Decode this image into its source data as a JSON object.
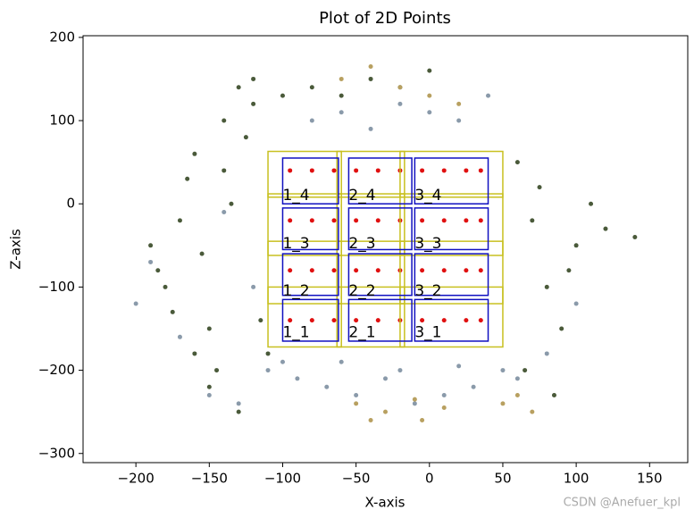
{
  "chart_data": {
    "type": "scatter",
    "title": "Plot of 2D Points",
    "xlabel": "X-axis",
    "ylabel": "Z-axis",
    "watermark": "CSDN @Anefuer_kpl",
    "xlim": [
      -236,
      176
    ],
    "ylim": [
      -311,
      202
    ],
    "xticks": [
      {
        "value": -200,
        "label": "−200"
      },
      {
        "value": -150,
        "label": "−150"
      },
      {
        "value": -100,
        "label": "−100"
      },
      {
        "value": -50,
        "label": "−50"
      },
      0,
      50,
      100,
      150
    ],
    "yticks": [
      {
        "value": -300,
        "label": "−300"
      },
      {
        "value": -200,
        "label": "−200"
      },
      {
        "value": -100,
        "label": "−100"
      },
      0,
      100,
      200
    ],
    "series": [
      {
        "color": "#4a5a3a",
        "x": [
          -190,
          -180,
          -170,
          -160,
          -150,
          -140,
          -130,
          -120,
          -110,
          -175,
          -165,
          -155,
          -145,
          -135,
          -125,
          -115,
          -185,
          -160,
          -140,
          -120,
          60,
          70,
          80,
          90,
          100,
          110,
          65,
          75,
          85,
          95,
          120,
          140,
          -150,
          -130,
          -100,
          -80,
          -60,
          -40,
          -20,
          0
        ],
        "y": [
          -50,
          -100,
          -20,
          60,
          -150,
          100,
          140,
          120,
          -180,
          -130,
          30,
          -60,
          -200,
          0,
          80,
          -140,
          -80,
          -180,
          40,
          150,
          50,
          -20,
          -100,
          -150,
          -50,
          0,
          -200,
          20,
          -230,
          -80,
          -30,
          -40,
          -220,
          -250,
          130,
          140,
          130,
          150,
          140,
          160
        ]
      },
      {
        "color": "#8a9aaa",
        "x": [
          -200,
          -170,
          -150,
          -130,
          -110,
          -90,
          -70,
          -50,
          -30,
          -10,
          10,
          30,
          50,
          -80,
          -60,
          -40,
          -20,
          0,
          20,
          40,
          60,
          -190,
          -140,
          -120,
          80,
          100,
          -100,
          -60,
          -20,
          20
        ],
        "y": [
          -120,
          -160,
          -230,
          -240,
          -200,
          -210,
          -220,
          -230,
          -210,
          -240,
          -230,
          -220,
          -200,
          100,
          110,
          90,
          120,
          110,
          100,
          130,
          -210,
          -70,
          -10,
          -100,
          -180,
          -120,
          -190,
          -190,
          -200,
          -195
        ]
      },
      {
        "color": "#b8a060",
        "x": [
          -60,
          -40,
          -20,
          0,
          20,
          -50,
          -30,
          -10,
          10,
          -5,
          50,
          60,
          70,
          -40
        ],
        "y": [
          150,
          165,
          140,
          130,
          120,
          -240,
          -250,
          -235,
          -245,
          -260,
          -240,
          -230,
          -250,
          -260
        ]
      },
      {
        "color": "#e01010",
        "x": [
          -95,
          -80,
          -65,
          -50,
          -35,
          -20,
          -5,
          10,
          25,
          35,
          -95,
          -80,
          -65,
          -50,
          -35,
          -20,
          -5,
          10,
          25,
          35,
          -95,
          -80,
          -65,
          -50,
          -35,
          -20,
          -5,
          10,
          25,
          35,
          -95,
          -80,
          -65,
          -50,
          -35,
          -20,
          -5,
          10,
          25,
          35
        ],
        "y": [
          40,
          40,
          40,
          40,
          40,
          40,
          40,
          40,
          40,
          40,
          -20,
          -20,
          -20,
          -20,
          -20,
          -20,
          -20,
          -20,
          -20,
          -20,
          -80,
          -80,
          -80,
          -80,
          -80,
          -80,
          -80,
          -80,
          -80,
          -80,
          -140,
          -140,
          -140,
          -140,
          -140,
          -140,
          -140,
          -140,
          -140,
          -140
        ]
      }
    ],
    "rect_groups": [
      {
        "color": "#c8c020",
        "rects": [
          [
            -110,
            -60,
            8,
            63
          ],
          [
            -63,
            -17,
            8,
            63
          ],
          [
            -20,
            50,
            8,
            63
          ],
          [
            -110,
            -60,
            -62,
            12
          ],
          [
            -63,
            -17,
            -62,
            12
          ],
          [
            -20,
            50,
            -62,
            12
          ],
          [
            -110,
            -60,
            -120,
            -45
          ],
          [
            -63,
            -17,
            -120,
            -45
          ],
          [
            -20,
            50,
            -120,
            -45
          ],
          [
            -110,
            -60,
            -172,
            -100
          ],
          [
            -63,
            -17,
            -172,
            -100
          ],
          [
            -20,
            50,
            -172,
            -100
          ]
        ]
      },
      {
        "color": "#1010c0",
        "rects": [
          [
            -100,
            -62,
            0,
            55
          ],
          [
            -55,
            -12,
            0,
            55
          ],
          [
            -10,
            40,
            0,
            55
          ],
          [
            -100,
            -62,
            -55,
            -5
          ],
          [
            -55,
            -12,
            -55,
            -5
          ],
          [
            -10,
            40,
            -55,
            -5
          ],
          [
            -100,
            -62,
            -110,
            -60
          ],
          [
            -55,
            -12,
            -110,
            -60
          ],
          [
            -10,
            40,
            -110,
            -60
          ],
          [
            -100,
            -62,
            -165,
            -115
          ],
          [
            -55,
            -12,
            -165,
            -115
          ],
          [
            -10,
            40,
            -165,
            -115
          ]
        ]
      }
    ],
    "annotations": [
      {
        "text": "1_4",
        "x": -100,
        "y": 10
      },
      {
        "text": "2_4",
        "x": -55,
        "y": 10
      },
      {
        "text": "3_4",
        "x": -10,
        "y": 10
      },
      {
        "text": "1_3",
        "x": -100,
        "y": -48
      },
      {
        "text": "2_3",
        "x": -55,
        "y": -48
      },
      {
        "text": "3_3",
        "x": -10,
        "y": -48
      },
      {
        "text": "1_2",
        "x": -100,
        "y": -105
      },
      {
        "text": "2_2",
        "x": -55,
        "y": -105
      },
      {
        "text": "3_2",
        "x": -10,
        "y": -105
      },
      {
        "text": "1_1",
        "x": -100,
        "y": -155
      },
      {
        "text": "2_1",
        "x": -55,
        "y": -155
      },
      {
        "text": "3_1",
        "x": -10,
        "y": -155
      }
    ]
  }
}
